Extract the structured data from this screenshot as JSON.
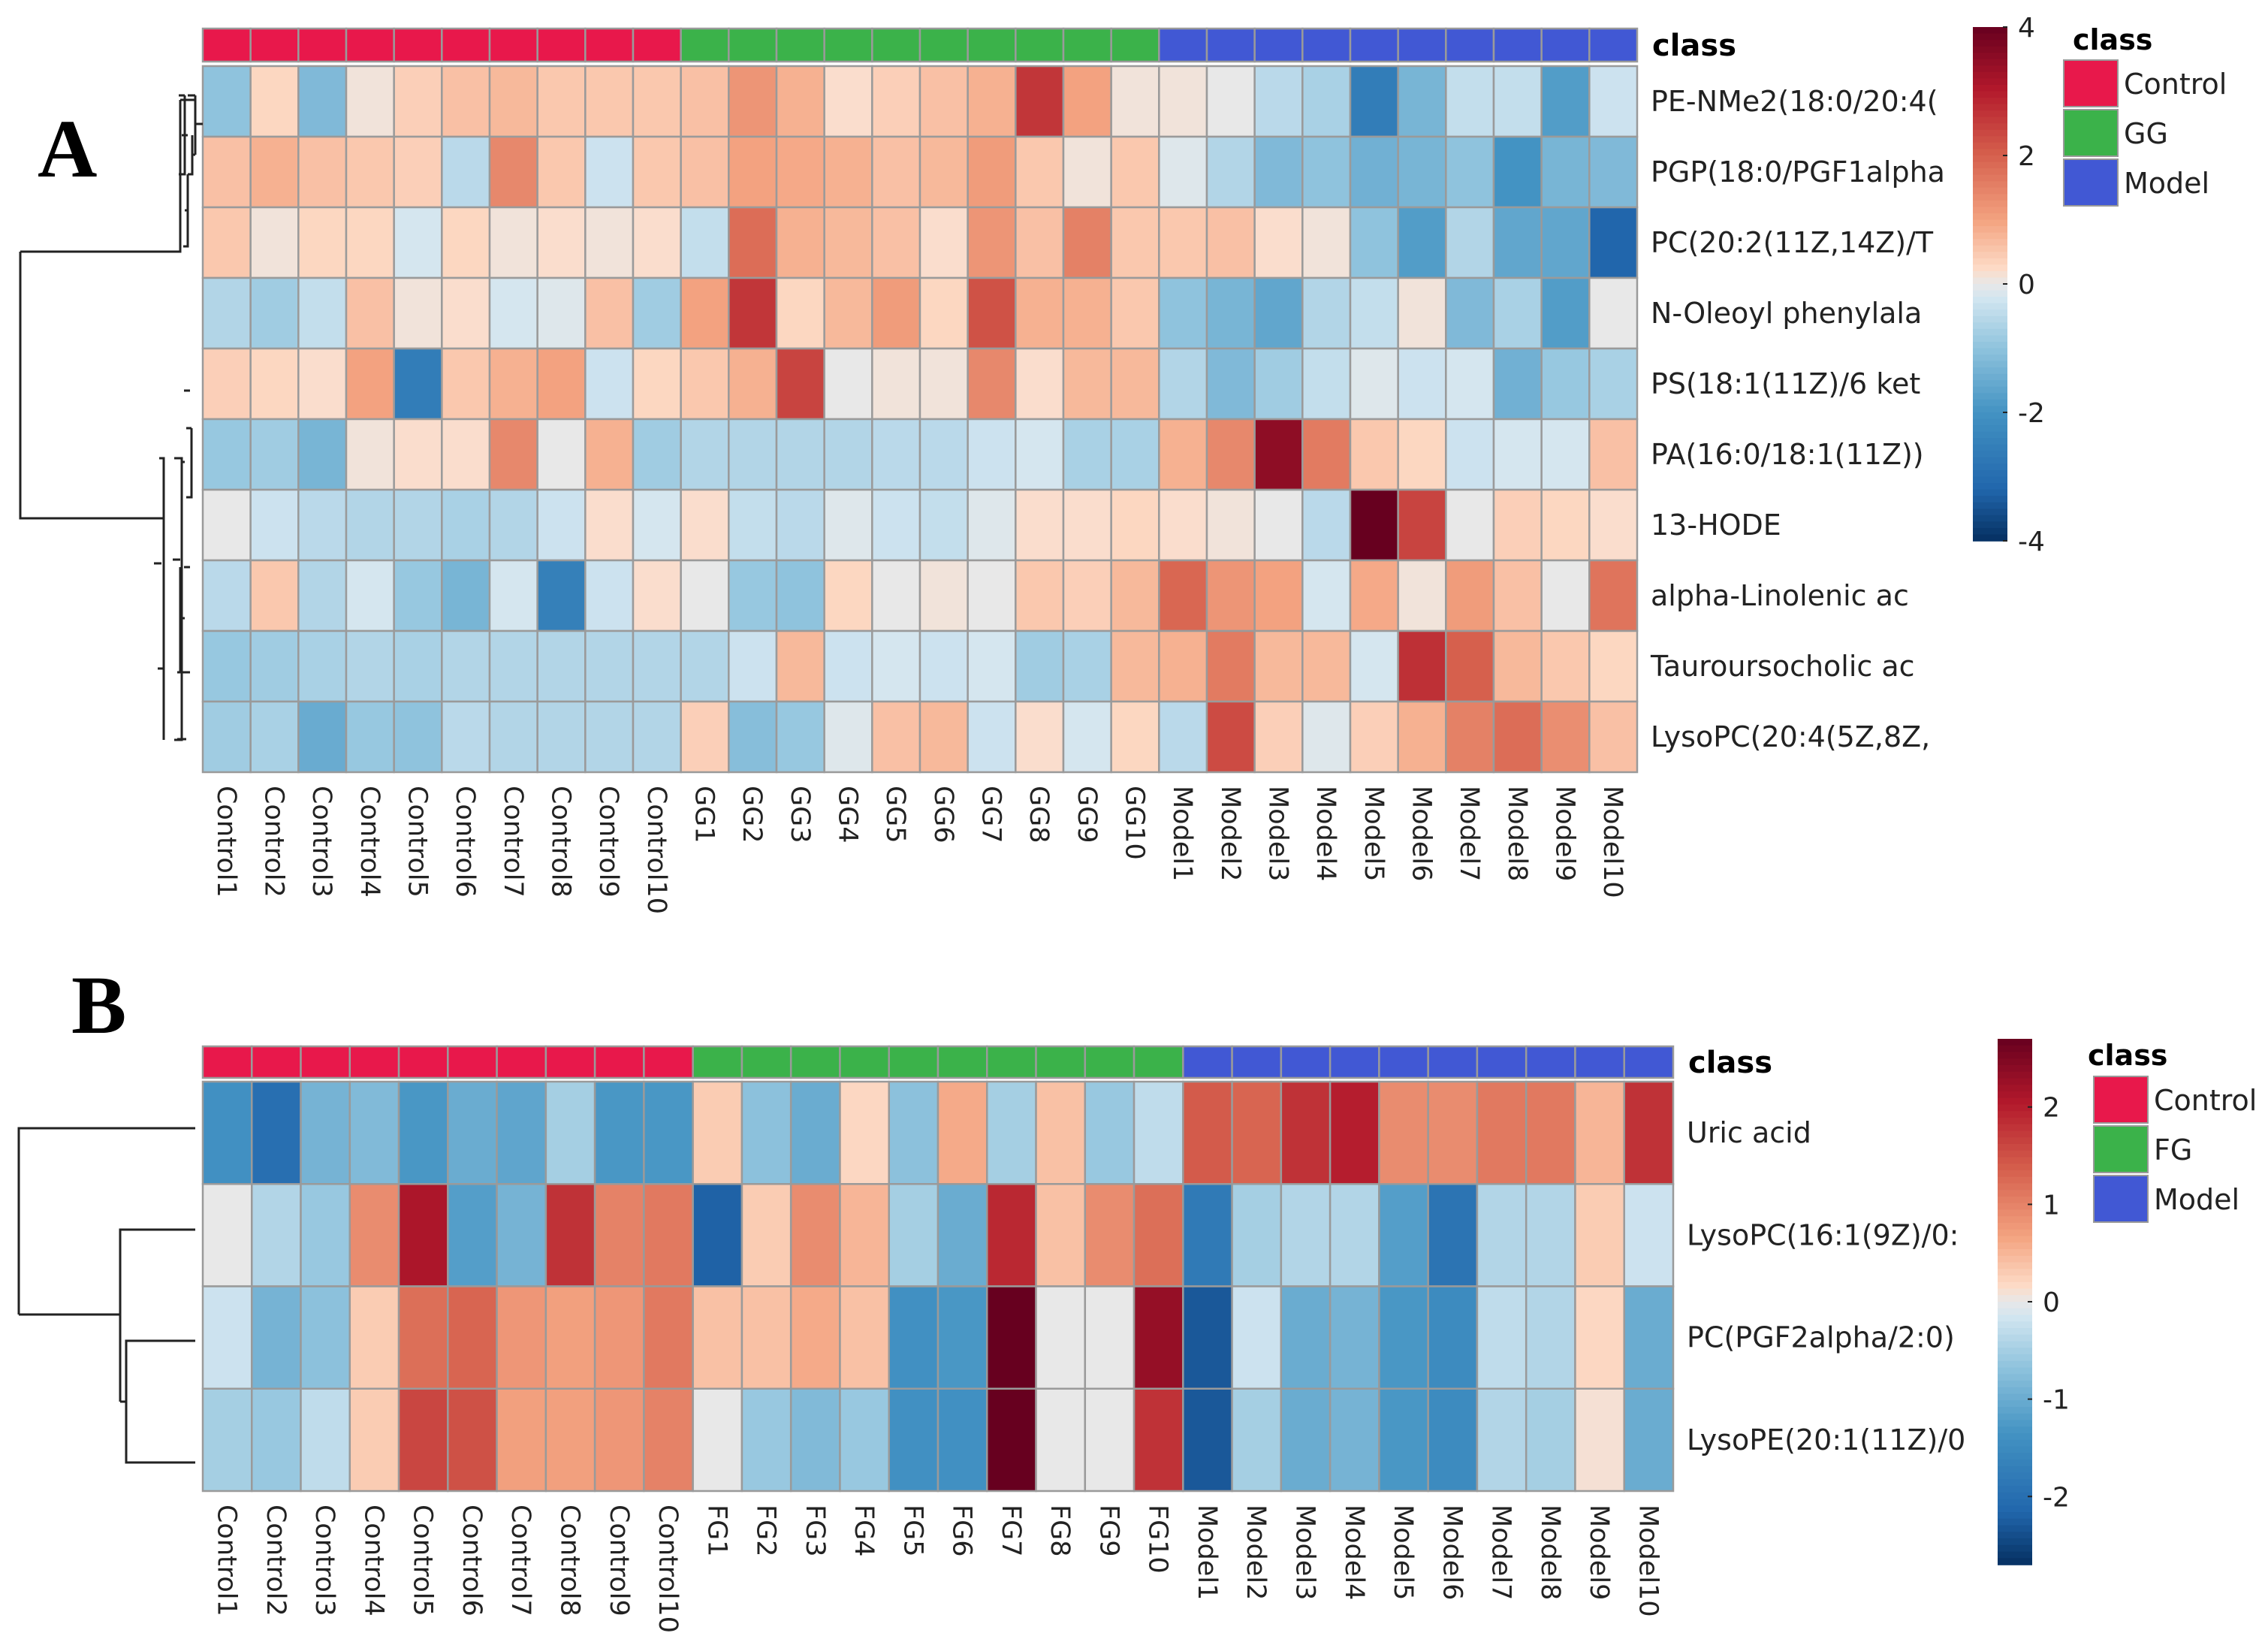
{
  "chart_data": [
    {
      "type": "heatmap",
      "panel": "A",
      "class_title": "class",
      "legend_title": "class",
      "classes": [
        {
          "name": "Control",
          "color": "#e8184b"
        },
        {
          "name": "GG",
          "color": "#3bb24a"
        },
        {
          "name": "Model",
          "color": "#4158d4"
        }
      ],
      "color_scale": {
        "min": -4,
        "max": 4,
        "ticks": [
          "4",
          "2",
          "0",
          "-2",
          "-4"
        ]
      },
      "columns": [
        "Control1",
        "Control2",
        "Control3",
        "Control4",
        "Control5",
        "Control6",
        "Control7",
        "Control8",
        "Control9",
        "Control10",
        "GG1",
        "GG2",
        "GG3",
        "GG4",
        "GG5",
        "GG6",
        "GG7",
        "GG8",
        "GG9",
        "GG10",
        "Model1",
        "Model2",
        "Model3",
        "Model4",
        "Model5",
        "Model6",
        "Model7",
        "Model8",
        "Model9",
        "Model10"
      ],
      "column_classes": [
        "Control",
        "Control",
        "Control",
        "Control",
        "Control",
        "Control",
        "Control",
        "Control",
        "Control",
        "Control",
        "GG",
        "GG",
        "GG",
        "GG",
        "GG",
        "GG",
        "GG",
        "GG",
        "GG",
        "GG",
        "Model",
        "Model",
        "Model",
        "Model",
        "Model",
        "Model",
        "Model",
        "Model",
        "Model",
        "Model"
      ],
      "rows": [
        "PE-NMe2(18:0/20:4(",
        "PGP(18:0/PGF1alpha",
        "PC(20:2(11Z,14Z)/T",
        "N-Oleoyl phenylala",
        "PS(18:1(11Z)/6 ket",
        "PA(16:0/18:1(11Z))",
        "13-HODE",
        "alpha-Linolenic ac",
        "Tauroursocholic ac",
        "LysoPC(20:4(5Z,8Z,"
      ],
      "values": [
        [
          -1.0,
          0.3,
          -1.2,
          0.1,
          0.4,
          0.6,
          0.7,
          0.5,
          0.5,
          0.5,
          0.6,
          1.2,
          0.8,
          0.2,
          0.4,
          0.6,
          0.8,
          2.6,
          1.0,
          0.1,
          0.1,
          0.0,
          -0.5,
          -0.7,
          -2.6,
          -1.3,
          -0.4,
          -0.4,
          -1.8,
          -0.3
        ],
        [
          0.6,
          0.8,
          0.6,
          0.5,
          0.4,
          -0.5,
          1.4,
          0.5,
          -0.3,
          0.5,
          0.6,
          1.0,
          0.9,
          0.8,
          0.6,
          0.7,
          1.1,
          0.5,
          0.1,
          0.5,
          -0.1,
          -0.6,
          -1.2,
          -1.0,
          -1.4,
          -1.3,
          -1.0,
          -2.0,
          -1.3,
          -1.2
        ],
        [
          0.5,
          0.1,
          0.3,
          0.3,
          -0.2,
          0.3,
          0.1,
          0.2,
          0.1,
          0.2,
          -0.4,
          1.8,
          0.8,
          0.7,
          0.6,
          0.2,
          1.2,
          0.6,
          1.5,
          0.5,
          0.5,
          0.6,
          0.2,
          0.1,
          -1.0,
          -1.8,
          -0.6,
          -1.6,
          -1.6,
          -3.2
        ],
        [
          -0.6,
          -0.8,
          -0.4,
          0.6,
          0.1,
          0.2,
          -0.2,
          -0.1,
          0.6,
          -0.8,
          1.0,
          2.6,
          0.3,
          0.7,
          1.1,
          0.3,
          2.2,
          0.8,
          0.8,
          0.5,
          -1.0,
          -1.3,
          -1.6,
          -0.6,
          -0.4,
          0.1,
          -1.2,
          -0.7,
          -1.8,
          0.0
        ],
        [
          0.4,
          0.3,
          0.2,
          1.0,
          -2.6,
          0.5,
          0.8,
          1.0,
          -0.3,
          0.3,
          0.5,
          0.8,
          2.4,
          0.0,
          0.1,
          0.1,
          1.4,
          0.2,
          0.7,
          0.7,
          -0.6,
          -1.2,
          -0.8,
          -0.4,
          -0.1,
          -0.3,
          -0.2,
          -1.4,
          -0.9,
          -0.7
        ],
        [
          -0.9,
          -0.8,
          -1.3,
          0.1,
          0.2,
          0.2,
          1.4,
          0.0,
          0.8,
          -0.8,
          -0.6,
          -0.6,
          -0.6,
          -0.6,
          -0.5,
          -0.5,
          -0.3,
          -0.2,
          -0.7,
          -0.7,
          0.8,
          1.4,
          3.5,
          1.6,
          0.5,
          0.3,
          -0.3,
          -0.2,
          -0.2,
          0.6
        ],
        [
          0.0,
          -0.3,
          -0.5,
          -0.6,
          -0.6,
          -0.7,
          -0.6,
          -0.3,
          0.2,
          -0.2,
          0.2,
          -0.4,
          -0.5,
          -0.1,
          -0.3,
          -0.4,
          -0.1,
          0.2,
          0.2,
          0.3,
          0.2,
          0.1,
          0.0,
          -0.5,
          4.0,
          2.4,
          0.0,
          0.4,
          0.3,
          0.2
        ],
        [
          -0.5,
          0.5,
          -0.6,
          -0.2,
          -0.9,
          -1.3,
          -0.2,
          -2.5,
          -0.3,
          0.2,
          0.0,
          -0.9,
          -1.0,
          0.3,
          0.0,
          0.1,
          0.0,
          0.5,
          0.4,
          0.7,
          1.9,
          1.2,
          1.0,
          -0.2,
          0.9,
          0.1,
          1.1,
          0.6,
          0.0,
          1.7
        ],
        [
          -0.9,
          -0.8,
          -0.7,
          -0.6,
          -0.7,
          -0.6,
          -0.6,
          -0.6,
          -0.6,
          -0.6,
          -0.6,
          -0.3,
          0.7,
          -0.3,
          -0.2,
          -0.3,
          -0.2,
          -0.8,
          -0.7,
          0.7,
          0.8,
          1.6,
          0.7,
          0.7,
          -0.2,
          2.7,
          2.0,
          0.7,
          0.5,
          0.3
        ],
        [
          -0.8,
          -0.7,
          -1.5,
          -0.9,
          -1.0,
          -0.5,
          -0.6,
          -0.6,
          -0.6,
          -0.6,
          0.4,
          -1.1,
          -0.9,
          -0.1,
          0.6,
          0.7,
          -0.3,
          0.2,
          -0.2,
          0.3,
          -0.5,
          2.3,
          0.4,
          -0.1,
          0.4,
          0.8,
          1.5,
          1.8,
          1.3,
          0.6
        ]
      ]
    },
    {
      "type": "heatmap",
      "panel": "B",
      "class_title": "class",
      "legend_title": "class",
      "classes": [
        {
          "name": "Control",
          "color": "#e8184b"
        },
        {
          "name": "FG",
          "color": "#3bb24a"
        },
        {
          "name": "Model",
          "color": "#4158d4"
        }
      ],
      "color_scale": {
        "min": -2.7,
        "max": 2.7,
        "ticks": [
          "2",
          "1",
          "0",
          "-1",
          "-2"
        ]
      },
      "columns": [
        "Control1",
        "Control2",
        "Control3",
        "Control4",
        "Control5",
        "Control6",
        "Control7",
        "Control8",
        "Control9",
        "Control10",
        "FG1",
        "FG2",
        "FG3",
        "FG4",
        "FG5",
        "FG6",
        "FG7",
        "FG8",
        "FG9",
        "FG10",
        "Model1",
        "Model2",
        "Model3",
        "Model4",
        "Model5",
        "Model6",
        "Model7",
        "Model8",
        "Model9",
        "Model10"
      ],
      "column_classes": [
        "Control",
        "Control",
        "Control",
        "Control",
        "Control",
        "Control",
        "Control",
        "Control",
        "Control",
        "Control",
        "FG",
        "FG",
        "FG",
        "FG",
        "FG",
        "FG",
        "FG",
        "FG",
        "FG",
        "FG",
        "Model",
        "Model",
        "Model",
        "Model",
        "Model",
        "Model",
        "Model",
        "Model",
        "Model",
        "Model"
      ],
      "rows": [
        "Uric acid",
        "LysoPC(16:1(9Z)/0:",
        "PC(PGF2alpha/2:0)",
        "LysoPE(20:1(11Z)/0"
      ],
      "values": [
        [
          -1.4,
          -2.0,
          -0.9,
          -0.8,
          -1.3,
          -1.0,
          -1.1,
          -0.5,
          -1.3,
          -1.3,
          0.3,
          -0.7,
          -1.0,
          0.2,
          -0.7,
          0.6,
          -0.5,
          0.4,
          -0.6,
          -0.3,
          1.4,
          1.3,
          1.8,
          2.0,
          0.9,
          0.9,
          1.1,
          1.1,
          0.5,
          1.8
        ],
        [
          0.0,
          -0.4,
          -0.6,
          0.9,
          2.1,
          -1.2,
          -0.9,
          1.8,
          1.0,
          1.1,
          -2.2,
          0.3,
          0.9,
          0.5,
          -0.5,
          -1.0,
          1.9,
          0.4,
          0.9,
          1.2,
          -1.8,
          -0.5,
          -0.4,
          -0.4,
          -1.2,
          -1.9,
          -0.4,
          -0.4,
          0.3,
          -0.2
        ],
        [
          -0.2,
          -0.9,
          -0.7,
          0.3,
          1.2,
          1.3,
          0.8,
          0.7,
          0.8,
          1.1,
          0.4,
          0.4,
          0.6,
          0.4,
          -1.4,
          -1.3,
          2.7,
          0.0,
          0.0,
          2.3,
          -2.3,
          -0.2,
          -1.0,
          -0.9,
          -1.3,
          -1.5,
          -0.3,
          -0.4,
          0.2,
          -1.0
        ],
        [
          -0.5,
          -0.6,
          -0.3,
          0.3,
          1.6,
          1.5,
          0.7,
          0.7,
          0.8,
          1.0,
          0.0,
          -0.6,
          -0.8,
          -0.6,
          -1.4,
          -1.4,
          2.7,
          0.0,
          0.0,
          1.8,
          -2.3,
          -0.5,
          -1.0,
          -0.9,
          -1.3,
          -1.5,
          -0.4,
          -0.5,
          0.1,
          -1.0
        ]
      ]
    }
  ]
}
